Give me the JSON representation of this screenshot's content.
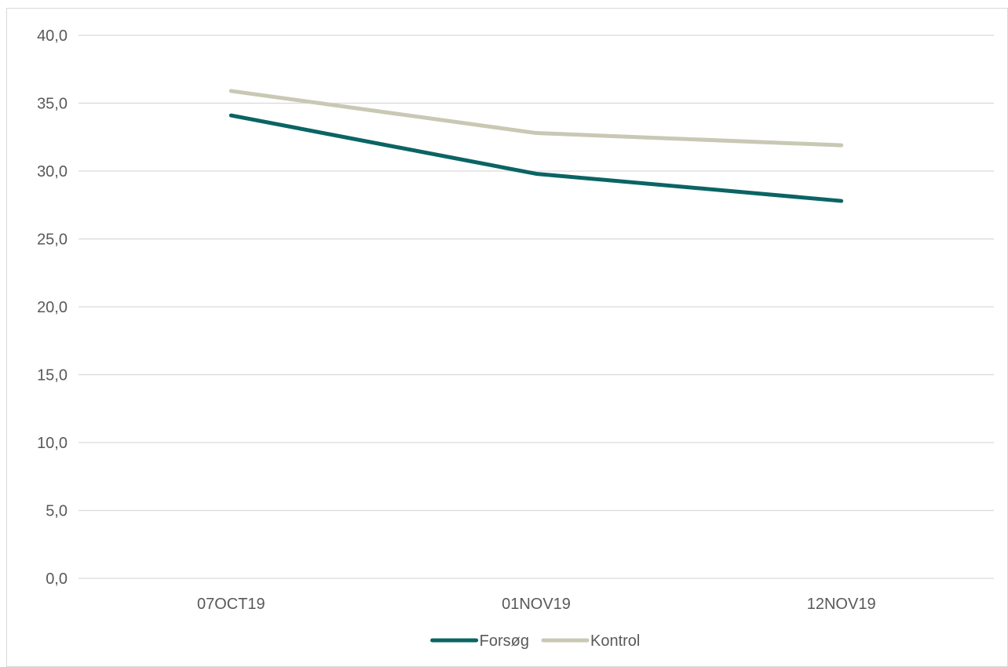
{
  "chart_data": {
    "type": "line",
    "categories": [
      "07OCT19",
      "01NOV19",
      "12NOV19"
    ],
    "series": [
      {
        "name": "Forsøg",
        "values": [
          34.1,
          29.8,
          27.8
        ],
        "color": "#0b6464"
      },
      {
        "name": "Kontrol",
        "values": [
          35.9,
          32.8,
          31.9
        ],
        "color": "#c8c8b4"
      }
    ],
    "ylim": [
      0,
      40
    ],
    "yticks": [
      "0,0",
      "5,0",
      "10,0",
      "15,0",
      "20,0",
      "25,0",
      "30,0",
      "35,0",
      "40,0"
    ],
    "grid": true,
    "gridline_color": "#d9d9d9",
    "legend_position": "bottom"
  }
}
